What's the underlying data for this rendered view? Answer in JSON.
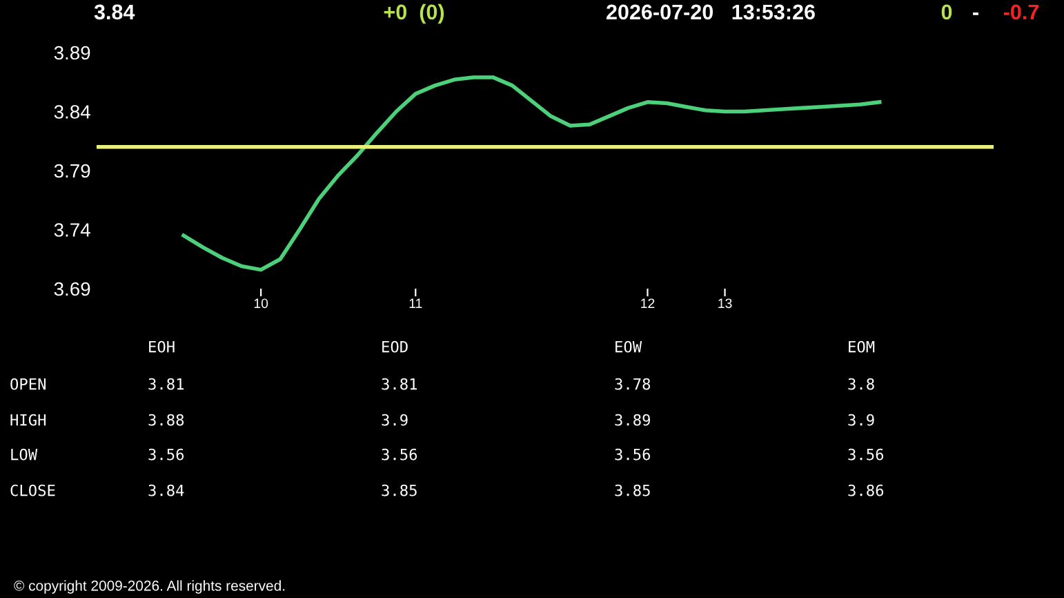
{
  "chart_data": {
    "type": "line",
    "categories": [
      null,
      null,
      null,
      null,
      "10",
      null,
      null,
      null,
      null,
      null,
      null,
      null,
      "11",
      null,
      null,
      null,
      null,
      null,
      null,
      null,
      null,
      null,
      null,
      null,
      "12",
      null,
      null,
      null,
      "13",
      null,
      null,
      null,
      null,
      null,
      null,
      null,
      null
    ],
    "series": [
      {
        "color": "#4cd07a",
        "values": [
          3.735,
          3.725,
          3.716,
          3.709,
          3.706,
          3.715,
          3.74,
          3.766,
          3.786,
          3.803,
          3.822,
          3.84,
          3.855,
          3.862,
          3.867,
          3.869,
          3.869,
          3.862,
          3.849,
          3.836,
          3.828,
          3.829,
          3.836,
          3.843,
          3.848,
          3.847,
          3.844,
          3.841,
          3.84,
          3.84,
          3.841,
          3.842,
          3.843,
          3.844,
          3.845,
          3.846,
          3.848
        ]
      }
    ],
    "ylim": [
      3.69,
      3.89
    ],
    "yticks": [
      3.69,
      3.74,
      3.79,
      3.84,
      3.89
    ],
    "ref_lines": [
      {
        "axis": "y",
        "value": 3.81,
        "color": "#e8f07a"
      }
    ],
    "grid": false,
    "legend": false,
    "marker": "none",
    "line_style": "solid",
    "annotations": [
      "3.84",
      "+0  (0)",
      "2026-07-20   13:53:26",
      "0",
      "-",
      "-0.7",
      "EOH",
      "EOD",
      "EOW",
      "EOM",
      "OPEN",
      "3.81",
      "3.81",
      "3.78",
      "3.8",
      "HIGH",
      "3.88",
      "3.9",
      "3.89",
      "3.9",
      "LOW",
      "3.56",
      "3.56",
      "3.56",
      "3.56",
      "CLOSE",
      "3.84",
      "3.85",
      "3.85",
      "3.86",
      "© copyright 2009-2026. All rights reserved."
    ]
  }
}
